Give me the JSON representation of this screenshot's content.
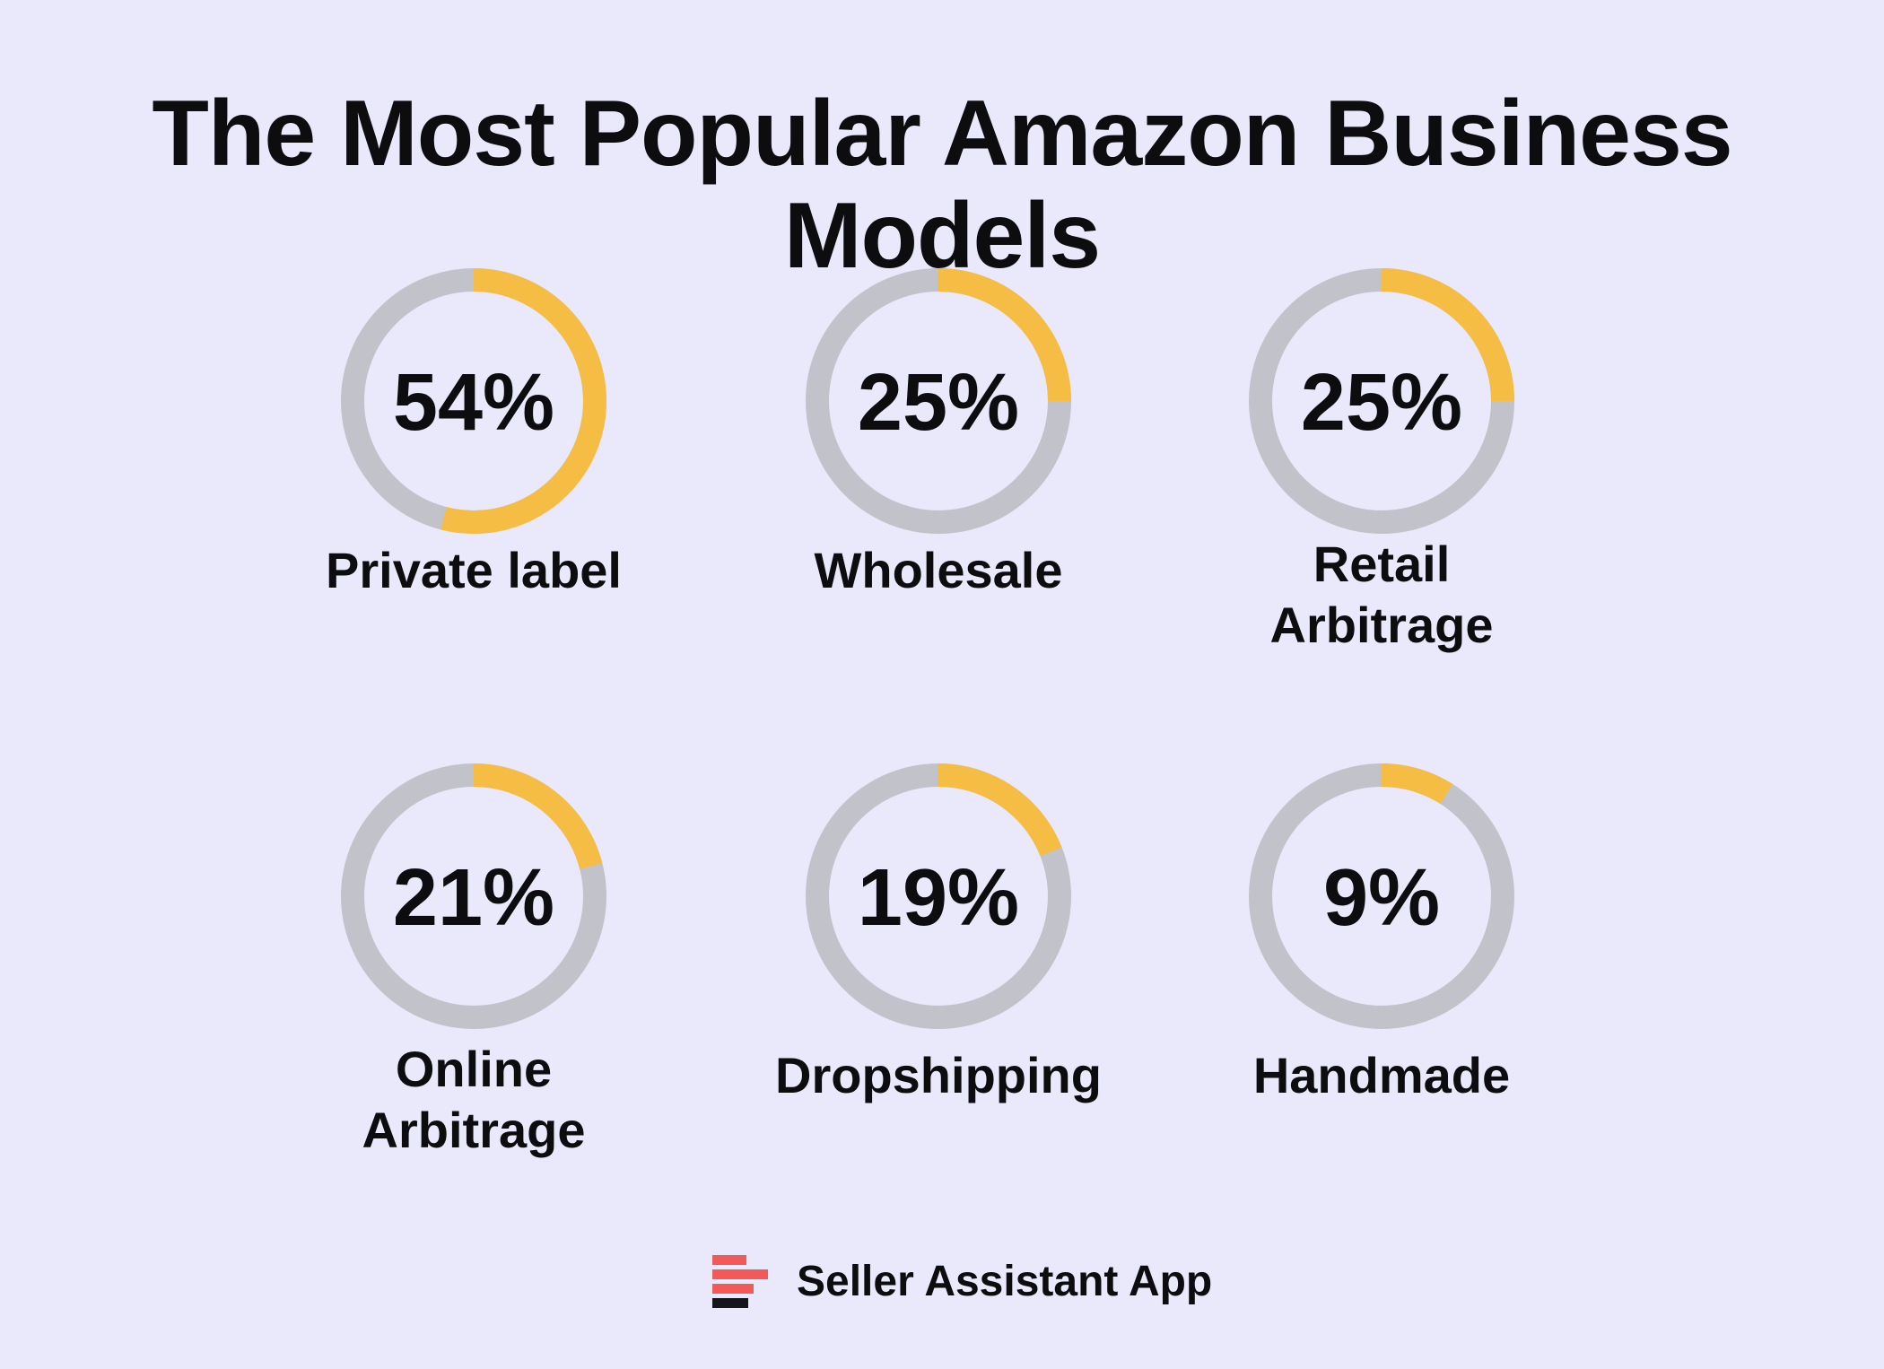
{
  "title": "The Most Popular Amazon Business Models",
  "brand": {
    "name": "Seller Assistant App",
    "logo_icon": "stacked-bars-logo-icon",
    "logo_colors": [
      "#f25a5a",
      "#f25a5a",
      "#f25a5a",
      "#15151a"
    ]
  },
  "colors": {
    "background": "#e9e9fb",
    "track": "#c2c2ca",
    "progress": "#f6bd45",
    "text": "#0d0d10"
  },
  "chart_data": {
    "type": "donut",
    "title": "The Most Popular Amazon Business Models",
    "unit": "%",
    "items": [
      {
        "label_lines": [
          "Private label"
        ],
        "value": 54,
        "display": "54%"
      },
      {
        "label_lines": [
          "Wholesale"
        ],
        "value": 25,
        "display": "25%"
      },
      {
        "label_lines": [
          "Retail",
          "Arbitrage"
        ],
        "value": 25,
        "display": "25%"
      },
      {
        "label_lines": [
          "Online",
          "Arbitrage"
        ],
        "value": 21,
        "display": "21%"
      },
      {
        "label_lines": [
          "Dropshipping"
        ],
        "value": 19,
        "display": "19%"
      },
      {
        "label_lines": [
          "Handmade"
        ],
        "value": 9,
        "display": "9%"
      }
    ]
  }
}
